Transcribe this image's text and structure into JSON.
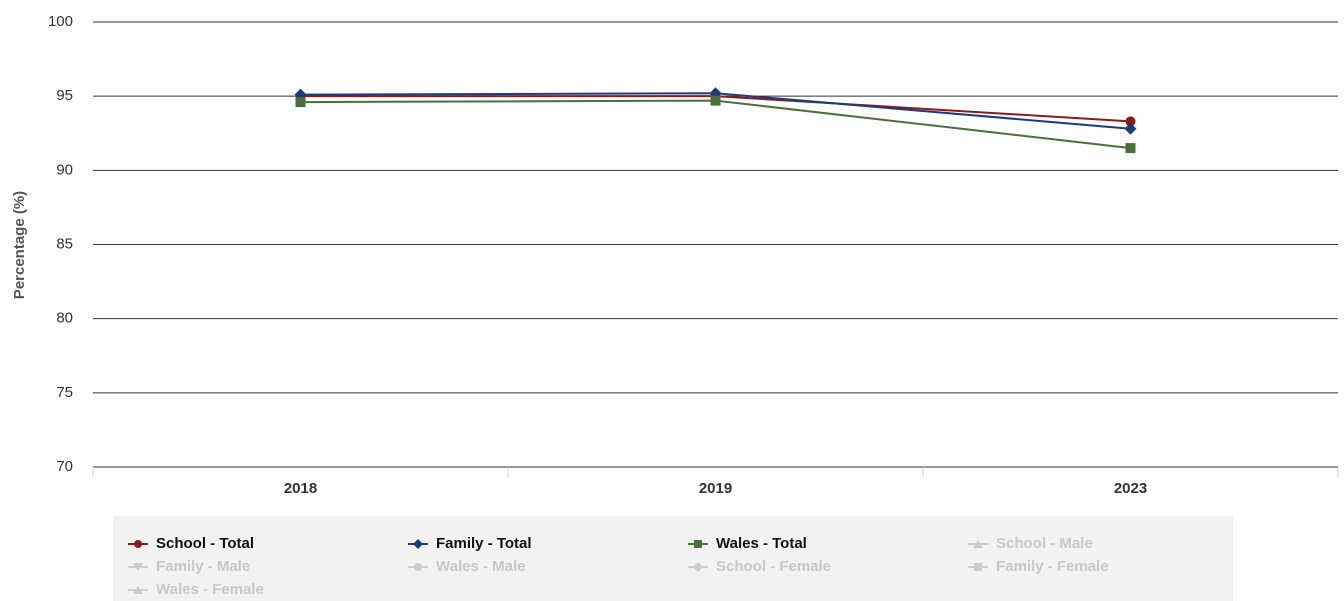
{
  "chart_data": {
    "type": "line",
    "y_label": "Percentage (%)",
    "categories": [
      "2018",
      "2019",
      "2023"
    ],
    "ylim": [
      70,
      100
    ],
    "yticks": [
      70,
      75,
      80,
      85,
      90,
      95,
      100
    ],
    "grid": true,
    "series": [
      {
        "name": "School - Total",
        "color": "#8b1a1a",
        "marker": "circle",
        "visible": true,
        "values": [
          95.0,
          95.0,
          93.3
        ]
      },
      {
        "name": "Family - Total",
        "color": "#1f3a7a",
        "marker": "diamond",
        "visible": true,
        "values": [
          95.1,
          95.2,
          92.8
        ]
      },
      {
        "name": "Wales - Total",
        "color": "#4a6f3a",
        "marker": "square",
        "visible": true,
        "values": [
          94.6,
          94.7,
          91.5
        ]
      },
      {
        "name": "School - Male",
        "color": "#cccccc",
        "marker": "triangle",
        "visible": false,
        "values": [
          null,
          null,
          null
        ]
      },
      {
        "name": "Family - Male",
        "color": "#cccccc",
        "marker": "triangle-down",
        "visible": false,
        "values": [
          null,
          null,
          null
        ]
      },
      {
        "name": "Wales - Male",
        "color": "#cccccc",
        "marker": "circle",
        "visible": false,
        "values": [
          null,
          null,
          null
        ]
      },
      {
        "name": "School - Female",
        "color": "#cccccc",
        "marker": "diamond",
        "visible": false,
        "values": [
          null,
          null,
          null
        ]
      },
      {
        "name": "Family - Female",
        "color": "#cccccc",
        "marker": "square",
        "visible": false,
        "values": [
          null,
          null,
          null
        ]
      },
      {
        "name": "Wales - Female",
        "color": "#cccccc",
        "marker": "triangle",
        "visible": false,
        "values": [
          null,
          null,
          null
        ]
      }
    ]
  }
}
